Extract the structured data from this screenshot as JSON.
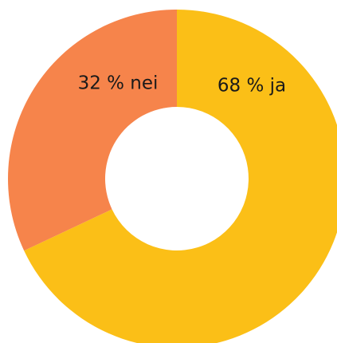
{
  "chart_data": {
    "type": "donut",
    "values": [
      68,
      32
    ],
    "value_labels": [
      "68 % ja",
      "32 % nei"
    ],
    "colors": [
      "#fbbf17",
      "#f6844b"
    ]
  }
}
